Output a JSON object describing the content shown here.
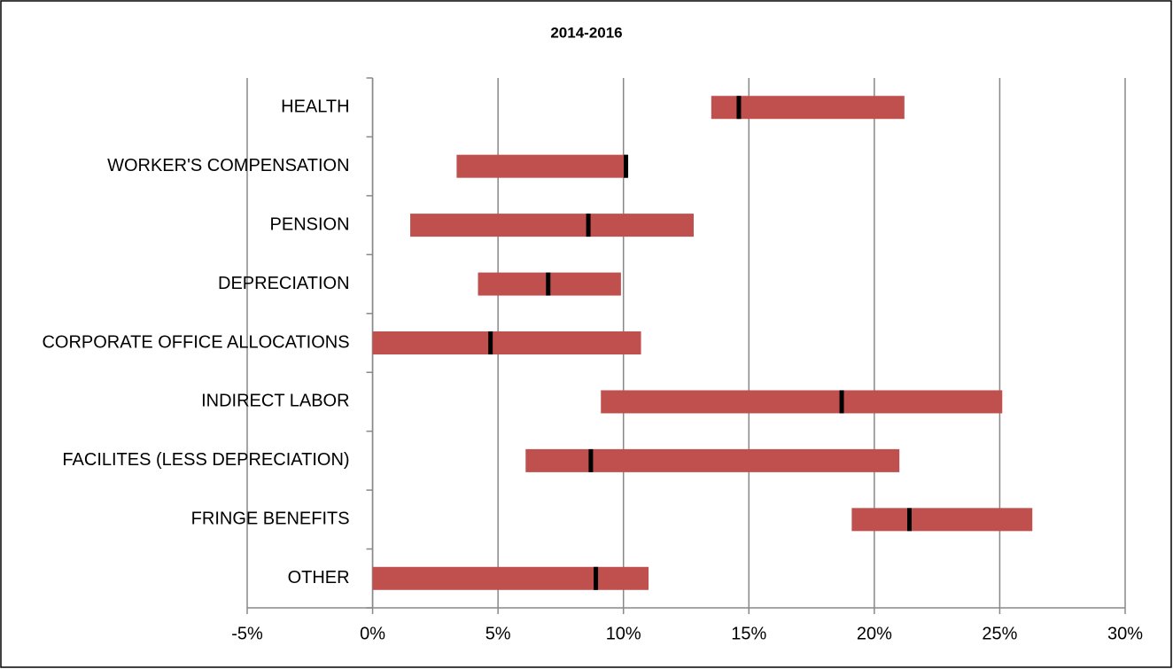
{
  "chart_data": {
    "type": "range_bar",
    "title": "2014-2016",
    "categories": [
      "HEALTH",
      "WORKER'S COMPENSATION",
      "PENSION",
      "DEPRECIATION",
      "CORPORATE OFFICE ALLOCATIONS",
      "INDIRECT LABOR",
      "FACILITES (LESS DEPRECIATION)",
      "FRINGE BENEFITS",
      "OTHER"
    ],
    "low": [
      13.5,
      3.35,
      1.5,
      4.2,
      0,
      9.1,
      6.1,
      19.1,
      0
    ],
    "high": [
      21.2,
      10.15,
      12.8,
      9.9,
      10.7,
      25.1,
      21.0,
      26.3,
      11.0
    ],
    "mid": [
      14.6,
      10.1,
      8.6,
      7.0,
      4.7,
      18.7,
      8.7,
      21.4,
      8.9
    ],
    "color": "#c0504d",
    "mid_color": "#000000",
    "xlim": [
      -5,
      30
    ],
    "xticks": [
      {
        "value": -5,
        "label": "-5%"
      },
      {
        "value": 0,
        "label": "0%"
      },
      {
        "value": 5,
        "label": "5%"
      },
      {
        "value": 10,
        "label": "10%"
      },
      {
        "value": 15,
        "label": "15%"
      },
      {
        "value": 20,
        "label": "20%"
      },
      {
        "value": 25,
        "label": "25%"
      },
      {
        "value": 30,
        "label": "30%"
      }
    ],
    "grid": true
  }
}
